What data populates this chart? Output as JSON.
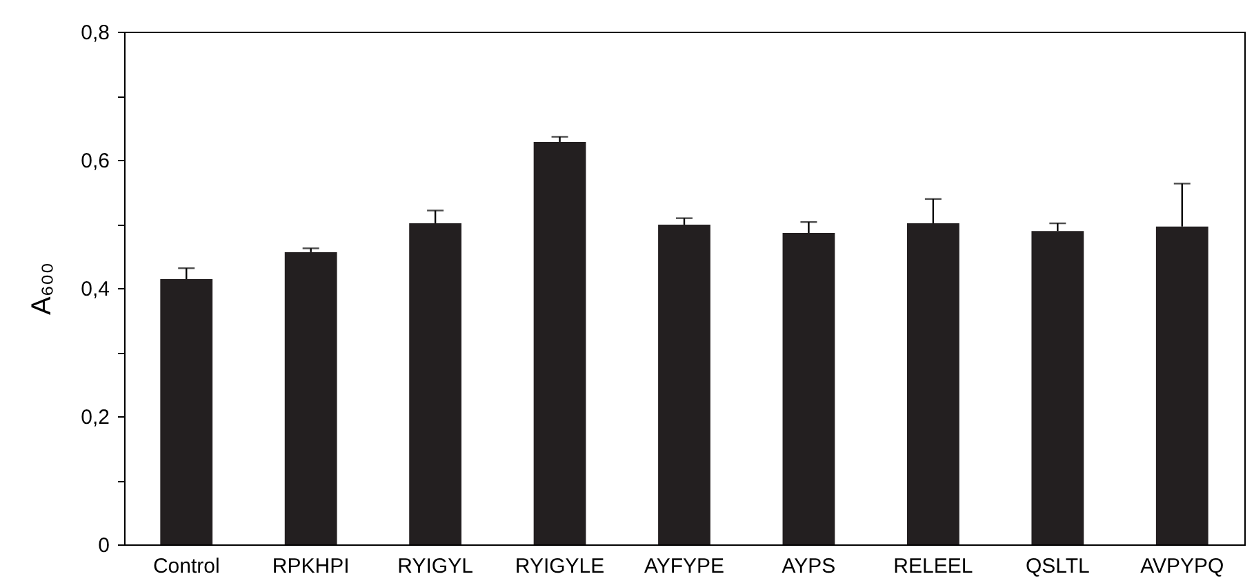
{
  "chart_data": {
    "type": "bar",
    "ylabel": "A₆₀₀",
    "categories": [
      "Control",
      "RPKHPI",
      "RYIGYL",
      "RYIGYLE",
      "AYFYPE",
      "AYPS",
      "RELEEL",
      "QSLTL",
      "AVPYPQ"
    ],
    "values": [
      0.414,
      0.456,
      0.501,
      0.628,
      0.499,
      0.486,
      0.501,
      0.489,
      0.496
    ],
    "errors": [
      [
        0.414,
        0.431
      ],
      [
        0.456,
        0.462
      ],
      [
        0.501,
        0.521
      ],
      [
        0.628,
        0.636
      ],
      [
        0.499,
        0.509
      ],
      [
        0.486,
        0.503
      ],
      [
        0.501,
        0.539
      ],
      [
        0.489,
        0.501
      ],
      [
        0.496,
        0.563
      ]
    ],
    "color": "#231f20",
    "ylim": [
      0,
      0.8
    ],
    "yticks": [
      0,
      {
        "value": 0.1,
        "label": null
      },
      {
        "value": 0.2,
        "label": "0,2"
      },
      {
        "value": 0.3,
        "label": null
      },
      {
        "value": 0.4,
        "label": "0,4"
      },
      {
        "value": 0.5,
        "label": null
      },
      {
        "value": 0.6,
        "label": "0,6"
      },
      {
        "value": 0.7,
        "label": null
      },
      {
        "value": 0.8,
        "label": "0,8"
      }
    ],
    "grid": false
  }
}
